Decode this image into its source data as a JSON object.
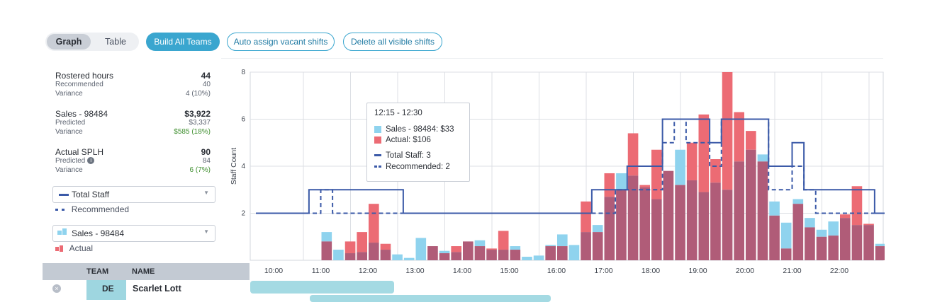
{
  "toolbar": {
    "view_graph": "Graph",
    "view_table": "Table",
    "build_all": "Build All Teams",
    "auto_assign": "Auto assign vacant shifts",
    "delete_visible": "Delete all visible shifts"
  },
  "stats": {
    "rostered": {
      "title": "Rostered hours",
      "value": "44",
      "sub1_label": "Recommended",
      "sub1_value": "40",
      "sub2_label": "Variance",
      "sub2_value": "4 (10%)"
    },
    "sales": {
      "title": "Sales - 98484",
      "value": "$3,922",
      "sub1_label": "Predicted",
      "sub1_value": "$3,337",
      "sub2_label": "Variance",
      "sub2_value": "$585 (18%)"
    },
    "splh": {
      "title": "Actual SPLH",
      "value": "90",
      "sub1_label": "Predicted",
      "sub1_value": "84",
      "sub2_label": "Variance",
      "sub2_value": "6 (7%)"
    }
  },
  "selects": {
    "staff": {
      "selected": "Total Staff",
      "legend2": "Recommended"
    },
    "sales": {
      "selected": "Sales - 98484",
      "legend2": "Actual"
    }
  },
  "colors": {
    "accent": "#3aa6cf",
    "sales": "#8fd3ee",
    "actual": "#ec6b74",
    "overlap": "#b05c78",
    "staff_line": "#3b5aa8"
  },
  "tooltip": {
    "time": "12:15 - 12:30",
    "sales": "Sales - 98484:  $33",
    "actual": "Actual:  $106",
    "total_staff": "Total Staff:  3",
    "recommended": "Recommended:  2"
  },
  "table": {
    "col_team": "TEAM",
    "col_name": "NAME",
    "rows": [
      {
        "team": "DE",
        "name": "Scarlet Lott"
      }
    ]
  },
  "chart_data": {
    "type": "bar",
    "ylabel": "Staff Count",
    "y_ticks": [
      "2",
      "4",
      "6",
      "8"
    ],
    "x_ticks": [
      "10:00",
      "11:00",
      "12:00",
      "13:00",
      "14:00",
      "15:00",
      "16:00",
      "17:00",
      "18:00",
      "19:00",
      "20:00",
      "21:00",
      "22:00"
    ],
    "ylim": [
      0,
      8
    ],
    "x_start_hour": 9.5,
    "interval_hours": 0.25,
    "sales": [
      0,
      0,
      0,
      0,
      0,
      0,
      1.2,
      0.45,
      0.3,
      0.35,
      0.75,
      0.45,
      0.25,
      0.1,
      0.95,
      0.6,
      0.4,
      0.35,
      0.8,
      0.85,
      0.45,
      0.45,
      0.6,
      0.15,
      0.2,
      0.65,
      1.1,
      0.65,
      1.2,
      1.5,
      2.7,
      3.7,
      3.6,
      3.1,
      2.6,
      3.8,
      4.7,
      3.4,
      2.9,
      3.3,
      3.0,
      4.2,
      4.7,
      4.5,
      2.5,
      1.6,
      2.6,
      1.8,
      1.3,
      1.65,
      1.8,
      1.5,
      1.5,
      0.7,
      0.6
    ],
    "actual": [
      0,
      0,
      0,
      0,
      0,
      0,
      0.8,
      0,
      0.8,
      1.2,
      2.4,
      0.7,
      0,
      0,
      0,
      0.6,
      0.3,
      0.6,
      0.8,
      0.6,
      0.5,
      1.25,
      0.45,
      0,
      0,
      0.6,
      0.6,
      0,
      2.5,
      1.2,
      3.7,
      3.0,
      5.4,
      3.2,
      4.7,
      3.8,
      3.2,
      5.0,
      6.2,
      4.3,
      8.0,
      6.3,
      5.5,
      4.2,
      1.9,
      0.5,
      2.4,
      1.4,
      1.0,
      1.05,
      1.95,
      3.15,
      1.55,
      0.6,
      0.8
    ],
    "total_staff": [
      2,
      2,
      2,
      2,
      2,
      3,
      3,
      3,
      3,
      3,
      3,
      3,
      3,
      2,
      2,
      2,
      2,
      2,
      2,
      2,
      2,
      2,
      2,
      2,
      2,
      2,
      2,
      2,
      2,
      3,
      3,
      3,
      4,
      4,
      4,
      6,
      6,
      6,
      6,
      5,
      6,
      6,
      6,
      6,
      4,
      4,
      5,
      3,
      3,
      3,
      3,
      3,
      3,
      2,
      2
    ],
    "recommended": [
      2,
      2,
      2,
      2,
      2,
      2,
      3,
      2,
      2,
      2,
      2,
      2,
      2,
      2,
      2,
      2,
      2,
      2,
      2,
      2,
      2,
      2,
      2,
      2,
      2,
      2,
      2,
      2,
      2,
      2,
      2,
      3,
      3,
      3,
      3,
      5,
      6,
      5,
      5,
      4,
      6,
      6,
      6,
      6,
      3,
      3,
      4,
      3,
      2,
      2,
      2,
      2,
      2,
      2,
      2
    ]
  }
}
